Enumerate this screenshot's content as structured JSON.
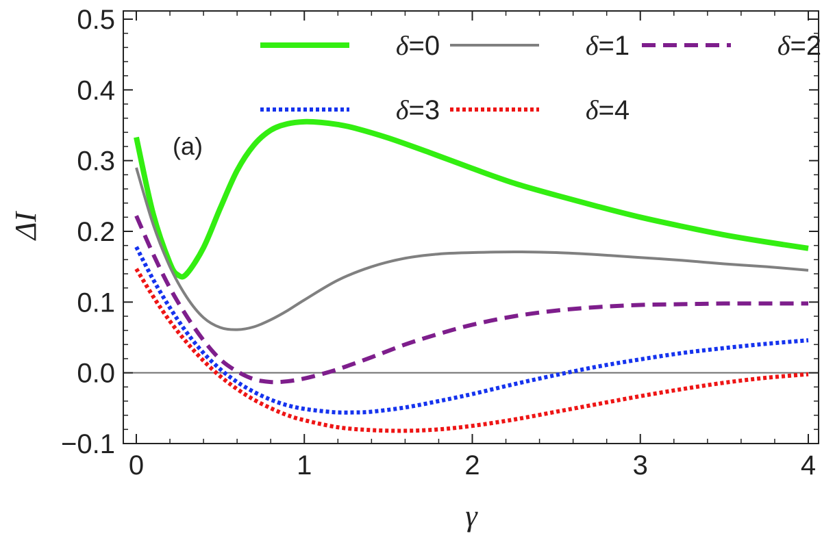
{
  "chart_data": {
    "type": "line",
    "title": "",
    "annotation": "(a)",
    "xlabel": "γ",
    "ylabel": "ΔI",
    "xlim": [
      0,
      4
    ],
    "ylim": [
      -0.1,
      0.5
    ],
    "xticks": [
      {
        "value": 0,
        "label": "0"
      },
      {
        "value": 1,
        "label": "1"
      },
      {
        "value": 2,
        "label": "2"
      },
      {
        "value": 3,
        "label": "3"
      },
      {
        "value": 4,
        "label": "4"
      }
    ],
    "yticks": [
      {
        "value": -0.1,
        "label": "−0.1"
      },
      {
        "value": 0.0,
        "label": "0.0"
      },
      {
        "value": 0.1,
        "label": "0.1"
      },
      {
        "value": 0.2,
        "label": "0.2"
      },
      {
        "value": 0.3,
        "label": "0.3"
      },
      {
        "value": 0.4,
        "label": "0.4"
      },
      {
        "value": 0.5,
        "label": "0.5"
      }
    ],
    "zero_line": true,
    "legend_placement": "top-right",
    "series": [
      {
        "name": "δ=0",
        "symbol": "δ",
        "eq": "=0",
        "color": "#33ee11",
        "style": "solid",
        "x": [
          0,
          0.1,
          0.2,
          0.25,
          0.3,
          0.4,
          0.5,
          0.6,
          0.7,
          0.8,
          0.9,
          1.0,
          1.1,
          1.2,
          1.3,
          1.5,
          1.75,
          2.0,
          2.25,
          2.5,
          2.75,
          3.0,
          3.25,
          3.5,
          3.75,
          4.0
        ],
        "y": [
          0.333,
          0.225,
          0.155,
          0.138,
          0.14,
          0.177,
          0.233,
          0.286,
          0.322,
          0.343,
          0.352,
          0.355,
          0.354,
          0.351,
          0.346,
          0.332,
          0.311,
          0.289,
          0.268,
          0.251,
          0.235,
          0.22,
          0.207,
          0.195,
          0.185,
          0.176
        ]
      },
      {
        "name": "δ=1",
        "symbol": "δ",
        "eq": "=1",
        "color": "#808080",
        "style": "solid",
        "x": [
          0,
          0.1,
          0.2,
          0.3,
          0.4,
          0.5,
          0.6,
          0.7,
          0.8,
          0.9,
          1.0,
          1.2,
          1.4,
          1.6,
          1.8,
          2.0,
          2.25,
          2.5,
          2.75,
          3.0,
          3.25,
          3.5,
          3.75,
          4.0
        ],
        "y": [
          0.29,
          0.21,
          0.15,
          0.107,
          0.078,
          0.064,
          0.061,
          0.065,
          0.075,
          0.088,
          0.103,
          0.131,
          0.15,
          0.162,
          0.168,
          0.17,
          0.171,
          0.17,
          0.167,
          0.163,
          0.159,
          0.154,
          0.15,
          0.145
        ]
      },
      {
        "name": "δ=2",
        "symbol": "δ",
        "eq": "=2",
        "color": "#7e1e8c",
        "style": "dashed",
        "x": [
          0,
          0.1,
          0.2,
          0.3,
          0.4,
          0.5,
          0.6,
          0.7,
          0.8,
          0.9,
          1.0,
          1.1,
          1.2,
          1.4,
          1.6,
          1.8,
          2.0,
          2.25,
          2.5,
          2.75,
          3.0,
          3.25,
          3.5,
          3.75,
          4.0
        ],
        "y": [
          0.222,
          0.168,
          0.12,
          0.08,
          0.046,
          0.019,
          0.002,
          -0.009,
          -0.013,
          -0.012,
          -0.008,
          -0.002,
          0.005,
          0.022,
          0.04,
          0.055,
          0.068,
          0.08,
          0.088,
          0.093,
          0.096,
          0.097,
          0.098,
          0.098,
          0.098
        ]
      },
      {
        "name": "δ=3",
        "symbol": "δ",
        "eq": "=3",
        "color": "#1533ee",
        "style": "dotted",
        "x": [
          0,
          0.1,
          0.2,
          0.3,
          0.4,
          0.5,
          0.6,
          0.7,
          0.8,
          0.9,
          1.0,
          1.1,
          1.2,
          1.3,
          1.4,
          1.6,
          1.8,
          2.0,
          2.25,
          2.5,
          2.75,
          3.0,
          3.25,
          3.5,
          3.75,
          4.0
        ],
        "y": [
          0.178,
          0.132,
          0.092,
          0.057,
          0.028,
          0.005,
          -0.013,
          -0.027,
          -0.038,
          -0.046,
          -0.051,
          -0.054,
          -0.056,
          -0.056,
          -0.055,
          -0.049,
          -0.04,
          -0.03,
          -0.016,
          -0.003,
          0.009,
          0.019,
          0.028,
          0.035,
          0.041,
          0.046
        ]
      },
      {
        "name": "δ=4",
        "symbol": "δ",
        "eq": "=4",
        "color": "#ee1515",
        "style": "dotted",
        "x": [
          0,
          0.1,
          0.2,
          0.3,
          0.4,
          0.5,
          0.6,
          0.7,
          0.8,
          0.9,
          1.0,
          1.2,
          1.4,
          1.6,
          1.8,
          2.0,
          2.25,
          2.5,
          2.75,
          3.0,
          3.25,
          3.5,
          3.75,
          4.0
        ],
        "y": [
          0.147,
          0.108,
          0.073,
          0.043,
          0.017,
          -0.005,
          -0.023,
          -0.038,
          -0.05,
          -0.06,
          -0.067,
          -0.077,
          -0.081,
          -0.082,
          -0.08,
          -0.075,
          -0.066,
          -0.055,
          -0.044,
          -0.033,
          -0.023,
          -0.014,
          -0.007,
          -0.002
        ]
      }
    ]
  }
}
